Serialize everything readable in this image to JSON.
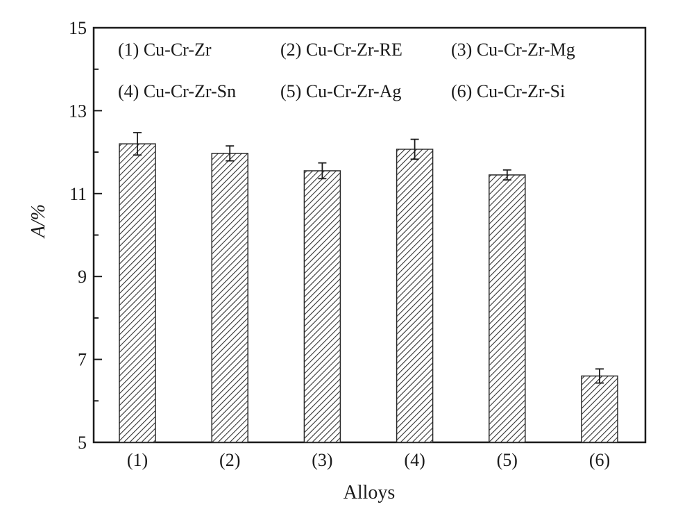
{
  "chart_data": {
    "type": "bar",
    "categories": [
      "(1)",
      "(2)",
      "(3)",
      "(4)",
      "(5)",
      "(6)"
    ],
    "values": [
      12.2,
      11.97,
      11.55,
      12.07,
      11.45,
      6.6
    ],
    "errors": [
      0.27,
      0.18,
      0.19,
      0.24,
      0.12,
      0.17
    ],
    "xlabel": "Alloys",
    "ylabel": "A/%",
    "ylim": [
      5,
      15
    ],
    "yticks": [
      5,
      7,
      9,
      11,
      13,
      15
    ],
    "legend": [
      "(1) Cu-Cr-Zr",
      "(2) Cu-Cr-Zr-RE",
      "(3) Cu-Cr-Zr-Mg",
      "(4) Cu-Cr-Zr-Sn",
      "(5) Cu-Cr-Zr-Ag",
      "(6) Cu-Cr-Zr-Si"
    ],
    "legend_position": "top",
    "grid": false,
    "bar_fill": "hatched",
    "colors": {
      "axis": "#1a1a1a",
      "bar_stroke": "#2a2a2a",
      "hatch": "#333333",
      "bar_bg": "#ffffff"
    }
  }
}
